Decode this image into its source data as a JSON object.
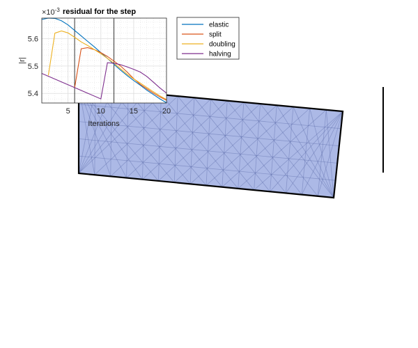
{
  "chart_data": {
    "type": "line",
    "title": "residual for the step",
    "exponent_label": "×10",
    "exponent_power": "-3",
    "xlabel": "Iterations",
    "ylabel": "|r|",
    "xlim": [
      1,
      20
    ],
    "ylim": [
      5.365,
      5.675
    ],
    "xticks": [
      5,
      10,
      15,
      20
    ],
    "yticks": [
      5.4,
      5.5,
      5.6
    ],
    "grid": true,
    "legend_position": "outside-right",
    "vlines": [
      6,
      12
    ],
    "series": [
      {
        "name": "elastic",
        "color": "#0072BD",
        "x": [
          1,
          2,
          3,
          4,
          5,
          6,
          7,
          8,
          9,
          10,
          11,
          12,
          13,
          14,
          15,
          16,
          17,
          18,
          19,
          20
        ],
        "y": [
          5.67,
          5.675,
          5.674,
          5.665,
          5.65,
          5.63,
          5.61,
          5.59,
          5.57,
          5.549,
          5.528,
          5.506,
          5.485,
          5.465,
          5.447,
          5.43,
          5.412,
          5.396,
          5.38,
          5.366
        ]
      },
      {
        "name": "split",
        "color": "#D95319",
        "x": [
          6,
          7,
          8,
          9,
          10,
          11,
          12,
          13,
          14,
          15,
          16,
          17,
          18,
          19,
          20
        ],
        "y": [
          5.42,
          5.563,
          5.567,
          5.56,
          5.549,
          5.535,
          5.518,
          5.5,
          5.478,
          5.454,
          5.433,
          5.417,
          5.401,
          5.387,
          5.375
        ]
      },
      {
        "name": "doubling",
        "color": "#EDB120",
        "x": [
          2,
          3,
          4,
          5,
          6,
          7,
          8,
          9,
          10,
          11,
          12,
          13,
          14,
          15,
          16,
          17,
          18,
          19,
          20
        ],
        "y": [
          5.466,
          5.62,
          5.628,
          5.621,
          5.605,
          5.588,
          5.575,
          5.56,
          5.545,
          5.528,
          5.51,
          5.49,
          5.47,
          5.453,
          5.438,
          5.422,
          5.406,
          5.391,
          5.378
        ]
      },
      {
        "name": "halving",
        "color": "#7E2F8E",
        "x": [
          1,
          10,
          11,
          12,
          13,
          14,
          15,
          16,
          17,
          18,
          19,
          20
        ],
        "y": [
          5.473,
          5.38,
          5.512,
          5.51,
          5.505,
          5.497,
          5.488,
          5.478,
          5.462,
          5.441,
          5.42,
          5.401
        ]
      }
    ]
  }
}
